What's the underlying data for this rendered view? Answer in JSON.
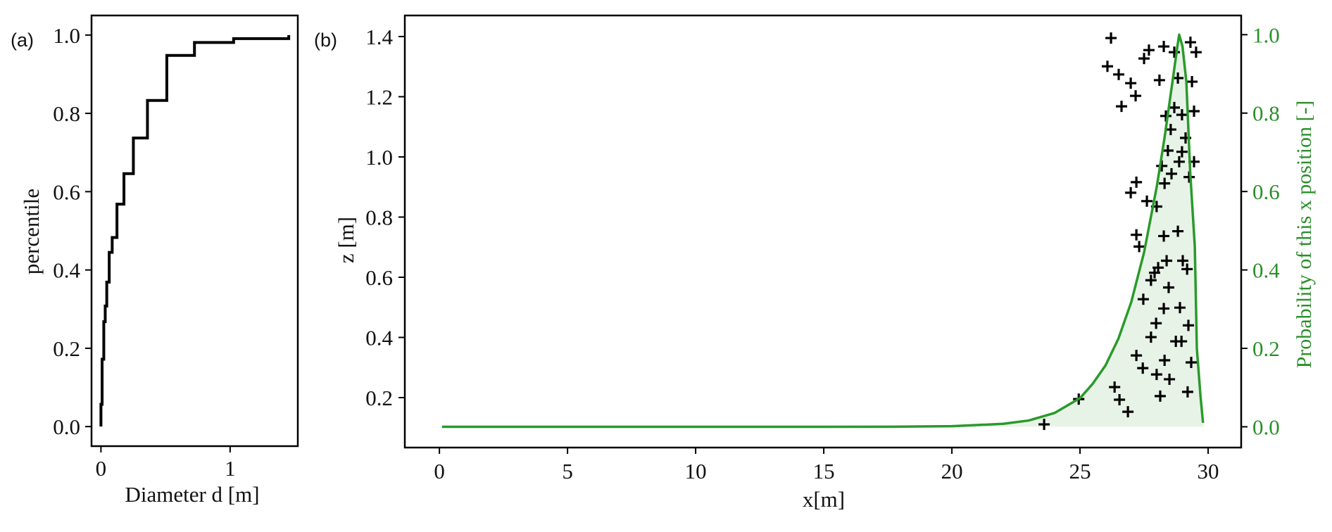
{
  "chart_data": [
    {
      "panel_label": "(a)",
      "type": "line",
      "style": "step",
      "xlabel": "Diameter d [m]",
      "ylabel": "percentile",
      "xlim": [
        -0.073,
        1.524
      ],
      "ylim": [
        -0.05,
        1.05
      ],
      "xticks": [
        0,
        1
      ],
      "xtick_labels": [
        "0",
        "1"
      ],
      "yticks": [
        0.0,
        0.2,
        0.4,
        0.6,
        0.8,
        1.0
      ],
      "ytick_labels": [
        "0.0",
        "0.2",
        "0.4",
        "0.6",
        "0.8",
        "1.0"
      ],
      "grid": false,
      "line_color": "#000000",
      "steps": [
        [
          0.0,
          0.057
        ],
        [
          0.009,
          0.172
        ],
        [
          0.022,
          0.268
        ],
        [
          0.033,
          0.308
        ],
        [
          0.045,
          0.369
        ],
        [
          0.064,
          0.445
        ],
        [
          0.087,
          0.483
        ],
        [
          0.124,
          0.568
        ],
        [
          0.178,
          0.646
        ],
        [
          0.251,
          0.737
        ],
        [
          0.36,
          0.833
        ],
        [
          0.51,
          0.948
        ],
        [
          0.724,
          0.981
        ],
        [
          1.027,
          0.991
        ],
        [
          1.454,
          1.0
        ]
      ]
    },
    {
      "panel_label": "(b)",
      "type": "scatter",
      "xlabel": "x[m]",
      "ylabel": "z [m]",
      "ylabel_right": "Probability of this x position [-]",
      "xlim": [
        -1.35,
        31.29
      ],
      "ylim": [
        0.034,
        1.47
      ],
      "ylim_right": [
        -0.053,
        1.049
      ],
      "xticks": [
        0,
        5,
        10,
        15,
        20,
        25,
        30
      ],
      "xtick_labels": [
        "0",
        "5",
        "10",
        "15",
        "20",
        "25",
        "30"
      ],
      "yticks": [
        0.2,
        0.4,
        0.6,
        0.8,
        1.0,
        1.2,
        1.4
      ],
      "ytick_labels": [
        "0.2",
        "0.4",
        "0.6",
        "0.8",
        "1.0",
        "1.2",
        "1.4"
      ],
      "yticks_right": [
        0.0,
        0.2,
        0.4,
        0.6,
        0.8,
        1.0
      ],
      "ytick_labels_right": [
        "0.0",
        "0.2",
        "0.4",
        "0.6",
        "0.8",
        "1.0"
      ],
      "grid": false,
      "marker": "plus",
      "marker_color": "#000000",
      "curve_color": "#2a9a2a",
      "fill_color": "#e8f3e8",
      "points": [
        [
          26.21,
          1.395
        ],
        [
          27.69,
          1.355
        ],
        [
          27.5,
          1.327
        ],
        [
          28.27,
          1.367
        ],
        [
          28.68,
          1.348
        ],
        [
          29.31,
          1.381
        ],
        [
          29.53,
          1.348
        ],
        [
          26.07,
          1.301
        ],
        [
          26.51,
          1.274
        ],
        [
          26.98,
          1.245
        ],
        [
          27.17,
          1.203
        ],
        [
          26.62,
          1.168
        ],
        [
          28.1,
          1.255
        ],
        [
          28.82,
          1.262
        ],
        [
          29.37,
          1.25
        ],
        [
          28.68,
          1.164
        ],
        [
          28.35,
          1.136
        ],
        [
          28.98,
          1.14
        ],
        [
          29.45,
          1.152
        ],
        [
          28.54,
          1.091
        ],
        [
          29.12,
          1.063
        ],
        [
          28.43,
          1.021
        ],
        [
          28.98,
          1.017
        ],
        [
          28.19,
          0.97
        ],
        [
          28.87,
          0.984
        ],
        [
          29.45,
          0.984
        ],
        [
          28.57,
          0.944
        ],
        [
          29.26,
          0.933
        ],
        [
          28.3,
          0.912
        ],
        [
          27.2,
          0.916
        ],
        [
          26.98,
          0.881
        ],
        [
          27.61,
          0.853
        ],
        [
          27.99,
          0.835
        ],
        [
          27.2,
          0.741
        ],
        [
          28.27,
          0.737
        ],
        [
          28.82,
          0.753
        ],
        [
          27.31,
          0.702
        ],
        [
          28.38,
          0.655
        ],
        [
          28.05,
          0.632
        ],
        [
          27.91,
          0.615
        ],
        [
          29.01,
          0.655
        ],
        [
          29.18,
          0.627
        ],
        [
          27.77,
          0.59
        ],
        [
          28.46,
          0.566
        ],
        [
          27.47,
          0.527
        ],
        [
          28.27,
          0.496
        ],
        [
          28.9,
          0.499
        ],
        [
          27.97,
          0.447
        ],
        [
          29.23,
          0.44
        ],
        [
          27.77,
          0.401
        ],
        [
          28.74,
          0.387
        ],
        [
          28.96,
          0.387
        ],
        [
          27.2,
          0.34
        ],
        [
          28.3,
          0.324
        ],
        [
          29.34,
          0.317
        ],
        [
          27.45,
          0.298
        ],
        [
          27.99,
          0.277
        ],
        [
          28.49,
          0.261
        ],
        [
          26.35,
          0.235
        ],
        [
          26.54,
          0.193
        ],
        [
          26.87,
          0.153
        ],
        [
          28.13,
          0.205
        ],
        [
          29.2,
          0.219
        ],
        [
          24.95,
          0.195
        ],
        [
          23.6,
          0.111
        ]
      ],
      "probability_curve": [
        [
          0.1,
          0.0
        ],
        [
          15,
          0.0
        ],
        [
          18,
          0.0003
        ],
        [
          20,
          0.0015
        ],
        [
          22,
          0.0075
        ],
        [
          23,
          0.016
        ],
        [
          24,
          0.035
        ],
        [
          25,
          0.073
        ],
        [
          25.5,
          0.11
        ],
        [
          26,
          0.157
        ],
        [
          26.5,
          0.225
        ],
        [
          27,
          0.318
        ],
        [
          27.5,
          0.445
        ],
        [
          28,
          0.614
        ],
        [
          28.3,
          0.738
        ],
        [
          28.6,
          0.876
        ],
        [
          28.8,
          0.97
        ],
        [
          28.87,
          1.0
        ],
        [
          29.0,
          0.97
        ],
        [
          29.15,
          0.88
        ],
        [
          29.3,
          0.65
        ],
        [
          29.48,
          0.46
        ],
        [
          29.56,
          0.2
        ],
        [
          29.7,
          0.08
        ],
        [
          29.8,
          0.01
        ]
      ]
    }
  ]
}
